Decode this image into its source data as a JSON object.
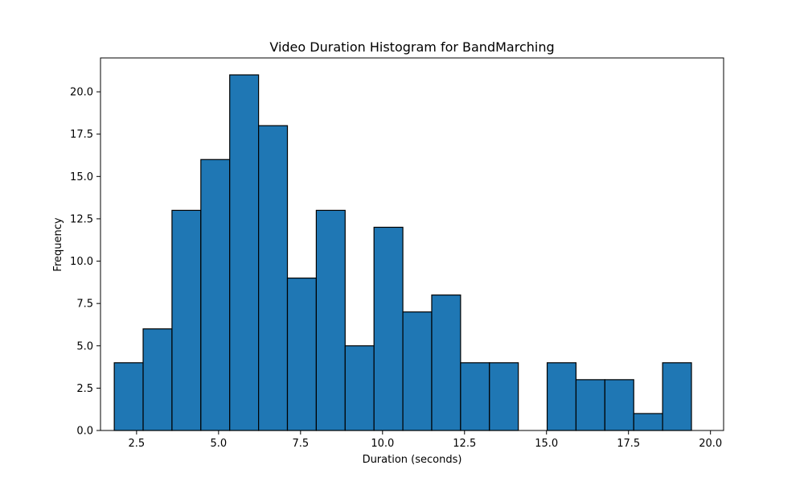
{
  "chart_data": {
    "type": "bar",
    "title": "Video Duration Histogram for BandMarching",
    "xlabel": "Duration (seconds)",
    "ylabel": "Frequency",
    "xlim": [
      1.4,
      20.4
    ],
    "ylim": [
      0,
      22
    ],
    "bin_edges": [
      1.82,
      2.7,
      3.58,
      4.46,
      5.34,
      6.22,
      7.1,
      7.98,
      8.86,
      9.74,
      10.62,
      11.5,
      12.38,
      13.26,
      14.14,
      15.02,
      15.9,
      16.78,
      17.66,
      18.54,
      19.42
    ],
    "values": [
      4,
      6,
      13,
      16,
      21,
      18,
      9,
      13,
      5,
      12,
      7,
      8,
      4,
      4,
      0,
      4,
      3,
      3,
      1,
      4
    ],
    "x_ticks": [
      2.5,
      5.0,
      7.5,
      10.0,
      12.5,
      15.0,
      17.5,
      20.0
    ],
    "x_tick_labels": [
      "2.5",
      "5.0",
      "7.5",
      "10.0",
      "12.5",
      "15.0",
      "17.5",
      "20.0"
    ],
    "y_ticks": [
      0,
      2.5,
      5,
      7.5,
      10,
      12.5,
      15,
      17.5,
      20
    ],
    "y_tick_labels": [
      "0.0",
      "2.5",
      "5.0",
      "7.5",
      "10.0",
      "12.5",
      "15.0",
      "17.5",
      "20.0"
    ],
    "bar_color": "#1f77b4",
    "edge_color": "#000000",
    "grid": false,
    "legend": "none"
  }
}
